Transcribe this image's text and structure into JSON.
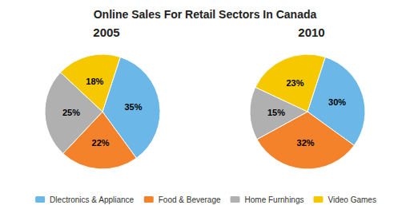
{
  "chart_data": {
    "type": "pie",
    "title": "Online Sales For Retail Sectors In Canada",
    "categories": [
      "Dlectronics & Appliance",
      "Food & Beverage",
      "Home Furnhings",
      "Video Games"
    ],
    "colors": [
      "#6bb8e8",
      "#f4822a",
      "#b0b0b0",
      "#f5c800"
    ],
    "series": [
      {
        "name": "2005",
        "values": [
          35,
          22,
          25,
          18
        ],
        "value_labels": [
          "35%",
          "22%",
          "25%",
          "18%"
        ]
      },
      {
        "name": "2010",
        "values": [
          30,
          32,
          15,
          23
        ],
        "value_labels": [
          "30%",
          "32%",
          "15%",
          "23%"
        ]
      }
    ],
    "data_labels": true,
    "legend": "bottom"
  }
}
